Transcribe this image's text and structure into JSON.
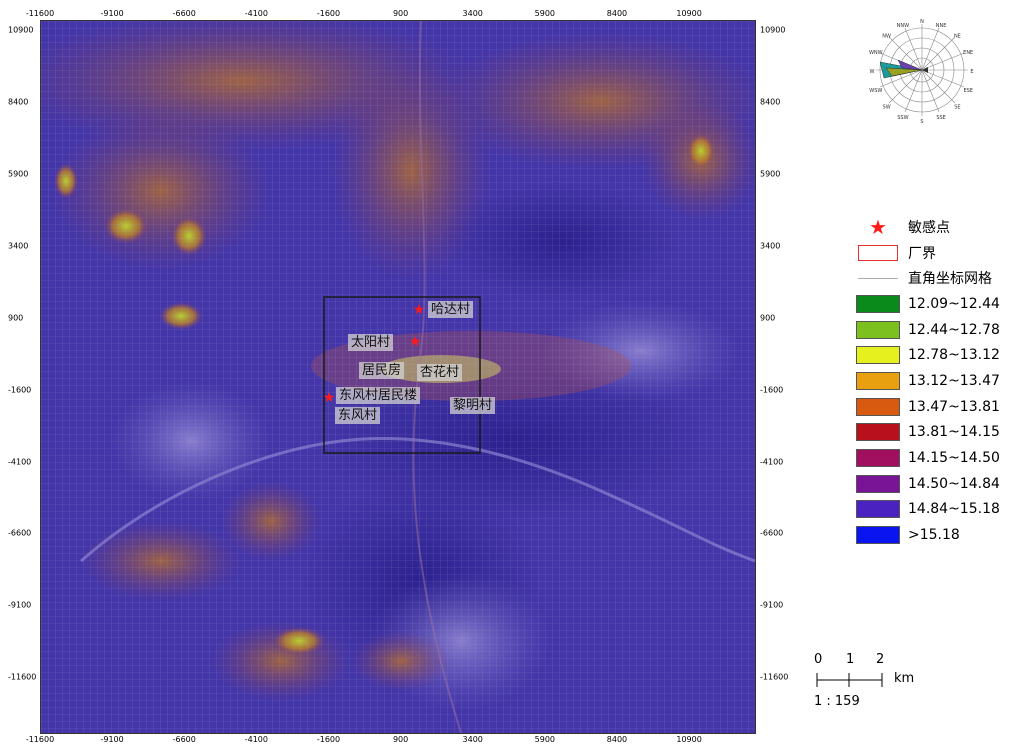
{
  "axis": {
    "top": [
      "-11600",
      "-9100",
      "-6600",
      "-4100",
      "-1600",
      "900",
      "3400",
      "5900",
      "8400",
      "10900"
    ],
    "bottom": [
      "-11600",
      "-9100",
      "-6600",
      "-4100",
      "-1600",
      "900",
      "3400",
      "5900",
      "8400",
      "10900"
    ],
    "left": [
      "10900",
      "8400",
      "5900",
      "3400",
      "900",
      "-1600",
      "-4100",
      "-6600",
      "-9100",
      "-11600"
    ],
    "right": [
      "10900",
      "8400",
      "5900",
      "3400",
      "900",
      "-1600",
      "-4100",
      "-6600",
      "-9100",
      "-11600"
    ]
  },
  "places": [
    {
      "name": "哈达村"
    },
    {
      "name": "太阳村"
    },
    {
      "name": "居民房"
    },
    {
      "name": "杏花村"
    },
    {
      "name": "东风村居民楼"
    },
    {
      "name": "东风村"
    },
    {
      "name": "黎明村"
    }
  ],
  "legend": {
    "sensitive_point": "敏感点",
    "plant_boundary": "厂界",
    "grid": "直角坐标网格",
    "classes": [
      {
        "label": "12.09~12.44",
        "color": "#0a8a1a"
      },
      {
        "label": "12.44~12.78",
        "color": "#7cc020"
      },
      {
        "label": "12.78~13.12",
        "color": "#e6f01e"
      },
      {
        "label": "13.12~13.47",
        "color": "#e8a010"
      },
      {
        "label": "13.47~13.81",
        "color": "#d85a10"
      },
      {
        "label": "13.81~14.15",
        "color": "#b8101c"
      },
      {
        "label": "14.15~14.50",
        "color": "#a0105e"
      },
      {
        "label": "14.50~14.84",
        "color": "#7a1496"
      },
      {
        "label": "14.84~15.18",
        "color": "#4a22c0"
      },
      {
        "label": ">15.18",
        "color": "#0a14f0"
      }
    ]
  },
  "scale": {
    "ticks": [
      "0",
      "1",
      "2"
    ],
    "unit": "km",
    "ratio": "1 : 159"
  },
  "windrose": {
    "directions": [
      "N",
      "NNE",
      "NE",
      "ENE",
      "E",
      "ESE",
      "SE",
      "SSE",
      "S",
      "SSW",
      "SW",
      "WSW",
      "W",
      "WNW",
      "NW",
      "NNW"
    ]
  }
}
